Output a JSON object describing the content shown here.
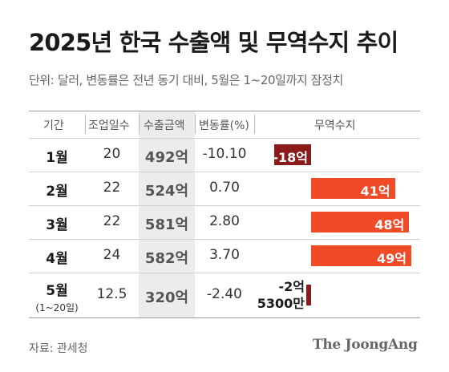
{
  "title": "2025년 한국 수출액 및 무역수지 추이",
  "subtitle": "단위: 달러, 변동률은 전년 동기 대비, 5월은 1~20일까지 잠정치",
  "headers": {
    "period": "기간",
    "workdays": "조업일수",
    "export_amount": "수출금액",
    "change_rate": "변동률(%)",
    "trade_balance": "무역수지"
  },
  "chart_data": {
    "type": "table",
    "rows": [
      {
        "period": "1월",
        "period_note": "",
        "workdays": "20",
        "export_amount": "492억",
        "change_rate": "-10.10",
        "trade_balance_label": "-18억",
        "trade_balance_value": -18
      },
      {
        "period": "2월",
        "period_note": "",
        "workdays": "22",
        "export_amount": "524억",
        "change_rate": "0.70",
        "trade_balance_label": "41억",
        "trade_balance_value": 41
      },
      {
        "period": "3월",
        "period_note": "",
        "workdays": "22",
        "export_amount": "581억",
        "change_rate": "2.80",
        "trade_balance_label": "48억",
        "trade_balance_value": 48
      },
      {
        "period": "4월",
        "period_note": "",
        "workdays": "24",
        "export_amount": "582억",
        "change_rate": "3.70",
        "trade_balance_label": "49억",
        "trade_balance_value": 49
      },
      {
        "period": "5월",
        "period_note": "(1~20일)",
        "workdays": "12.5",
        "export_amount": "320억",
        "change_rate": "-2.40",
        "trade_balance_label_line1": "-2억",
        "trade_balance_label_line2": "5300만",
        "trade_balance_value": -2.53
      }
    ],
    "colors": {
      "positive": "#f04a26",
      "negative": "#8b1a1a"
    }
  },
  "footer": {
    "source": "자료: 관세청",
    "brand": "The JoongAng"
  }
}
